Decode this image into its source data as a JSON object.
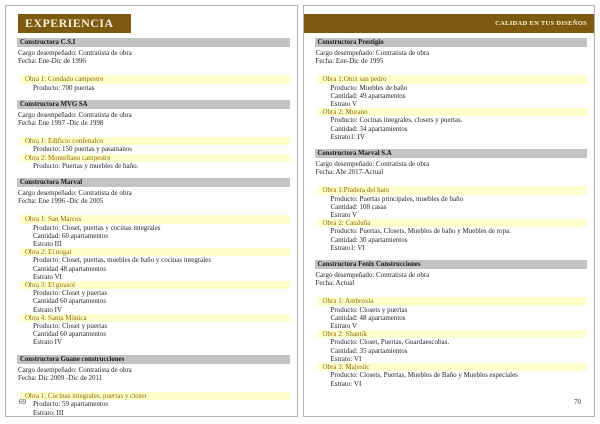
{
  "document": {
    "colors": {
      "header_brown": "#7d5a10",
      "header_text": "#f7f1da",
      "section_bar_bg": "#c3c3c3",
      "obra_highlight_bg": "#ffffcc",
      "obra_text": "#8a6a08",
      "body_text": "#1f1f1f"
    },
    "pages": [
      {
        "id": "left",
        "header": {
          "type": "title-box",
          "text": "EXPERIENCIA"
        },
        "page_number": "69",
        "sections": [
          {
            "company": "Constructora C.S.I",
            "cargo": "Cargo desempeñado: Contratista de obra",
            "fecha": "Fecha: Ene-Dic de 1996",
            "obras": [
              {
                "title": "Obra 1: Condado campestre",
                "details": [
                  "Producto: 700 puertas"
                ]
              }
            ]
          },
          {
            "company": "Constructora MVG SA",
            "cargo": "Cargo desempeñado: Contratista de obra",
            "fecha": "Fecha: Ene 1997 -Dic de 1998",
            "obras": [
              {
                "title": "Obra 1: Edificio confenalco",
                "details": [
                  "Producto: 150 puertas y pasamanos"
                ]
              },
              {
                "title": "Obra 2: Montellano campestre",
                "details": [
                  "Producto: Puertas y muebles de baño."
                ]
              }
            ]
          },
          {
            "company": "Constructora Marval",
            "cargo": "Cargo desempeñado: Contratista de obra",
            "fecha": "Fecha: Ene 1996 -Dic de 2005",
            "obras": [
              {
                "title": "Obra 1: San Marcos",
                "details": [
                  "Producto: Closet, puertas y cocinas integrales",
                  "Cantidad: 60 apartamentos",
                  "Estrato III"
                ]
              },
              {
                "title": "Obra 2: El nogal",
                "details": [
                  "Producto: Closet, puertas, muebles de baño y cocinas integrales",
                  "Cantidad 48 apartamentos",
                  "Estrato VI"
                ]
              },
              {
                "title": "Obra 3: El girasol",
                "details": [
                  "Producto: Closet y puertas",
                  "Cantidad 60 apartamentos",
                  "Estrato IV"
                ]
              },
              {
                "title": "Obra 4: Santa Mónica",
                "details": [
                  "Producto: Closet y puertas",
                  "Cantidad 60 apartamentos",
                  "Estrato IV"
                ]
              }
            ]
          },
          {
            "company": "Constructora Guane construcciones",
            "cargo": "Cargo desempeñado: Contratista de obra",
            "fecha": "Fecha: Dic 2009 -Dic de 2011",
            "obras": [
              {
                "title": "Obra 1: Cocinas integrales, puertas y closet",
                "details": [
                  "Producto: 59 apartamentos",
                  "Estrato: III"
                ]
              }
            ]
          }
        ]
      },
      {
        "id": "right",
        "header": {
          "type": "banner",
          "text": "CALIDAD EN TUS DISEÑOS"
        },
        "page_number": "70",
        "sections": [
          {
            "company": "Constructora Prestigio",
            "cargo": "Cargo desempeñado: Contratista de obra",
            "fecha": "Fecha: Ene-Dic de 1995",
            "obras": [
              {
                "title": "Obra 1:Onix san pedro",
                "details": [
                  "Producto: Muebles de baño",
                  "Cantidad: 49 apartamentos",
                  "Estrato V"
                ]
              },
              {
                "title": "Obra 2: Murano",
                "details": [
                  "Producto: Cocinas integrales, closets y puertas.",
                  "Cantidad: 34 apartamientos",
                  "Estrato1: IV"
                ]
              }
            ]
          },
          {
            "company": "Constructora Marval S.A",
            "cargo": "Cargo desempeñado: Contratista de obra",
            "fecha": "Fecha: Abr 2017-Actual",
            "obras": [
              {
                "title": "Obra 1:Pradera del hato",
                "details": [
                  "Producto: Puertas principales, muebles de baño",
                  "Cantidad: 108 casas",
                  "Estrato V"
                ]
              },
              {
                "title": "Obra 2: Cataluña",
                "details": [
                  "Producto: Puertas, Closets, Muebles de baño y Muebles de ropa.",
                  "Cantidad: 30 apartamientos",
                  "Estrato1: VI"
                ]
              }
            ]
          },
          {
            "company": "Constructora Fenix Construcciones",
            "cargo": "Cargo desempeñado: Contratista de obra",
            "fecha": "Fecha: Actual",
            "obras": [
              {
                "title": "Obra 1: Ambroxia",
                "details": [
                  "Producto: Closets y puertas",
                  "Cantidad: 48 apartamentos",
                  "Estrato V"
                ]
              },
              {
                "title": "Obra 2: Shantik",
                "details": [
                  "Producto: Closet, Puertas, Guardaescobas.",
                  "Cantidad: 35 apartamientos",
                  "Estrato: VI"
                ]
              },
              {
                "title": "Obra 3: Majestic",
                "details": [
                  "Producto: Closets, Puertas, Muebles de Baño y Muebles especiales",
                  "Estrato: VI"
                ]
              }
            ]
          }
        ]
      }
    ]
  }
}
